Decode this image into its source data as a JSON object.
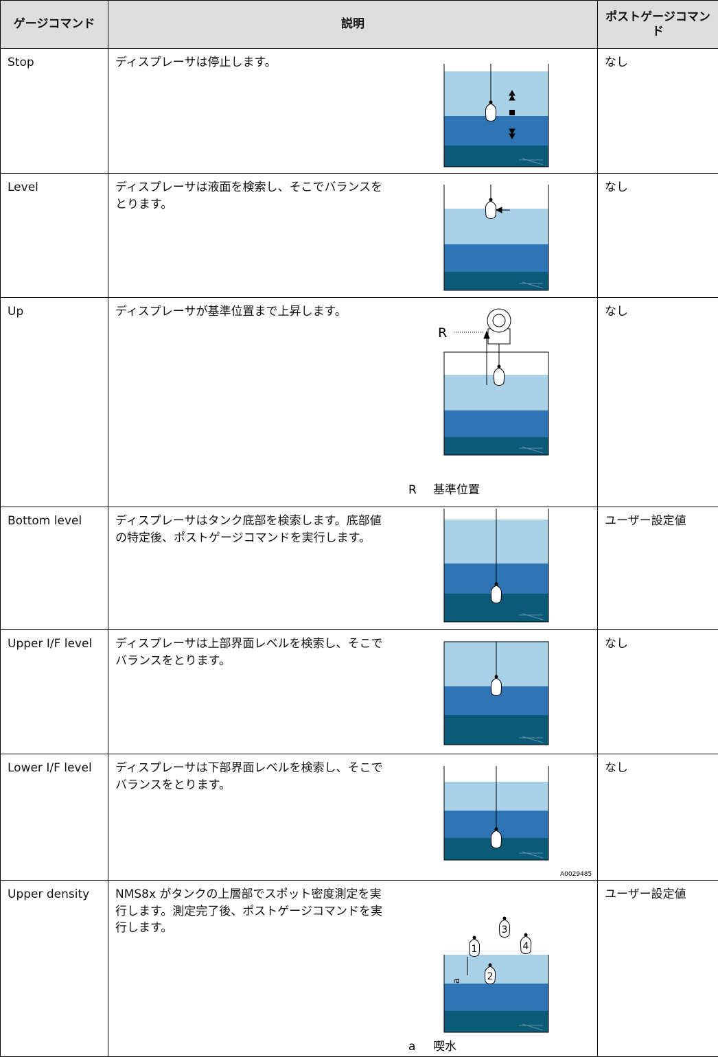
{
  "header": {
    "command": "ゲージコマンド",
    "description": "説明",
    "post": "ポストゲージコマンド"
  },
  "rows": [
    {
      "command": "Stop",
      "description": "ディスプレーサは停止します。",
      "post": "なし"
    },
    {
      "command": "Level",
      "description": "ディスプレーサは液面を検索し、そこでバランスをとります。",
      "post": "なし"
    },
    {
      "command": "Up",
      "description": "ディスプレーサが基準位置まで上昇します。",
      "post": "なし"
    },
    {
      "command": "Bottom level",
      "description": "ディスプレーサはタンク底部を検索します。底部値の特定後、ポストゲージコマンドを実行します。",
      "post": "ユーザー設定値"
    },
    {
      "command": "Upper I/F level",
      "description": "ディスプレーサは上部界面レベルを検索し、そこでバランスをとります。",
      "post": "なし"
    },
    {
      "command": "Lower I/F level",
      "description": "ディスプレーサは下部界面レベルを検索し、そこでバランスをとります。",
      "post": "なし"
    },
    {
      "command": "Upper density",
      "description": "NMS8x がタンクの上層部でスポット密度測定を実行します。測定完了後、ポストゲージコマンドを実行します。",
      "post": "ユーザー設定値"
    }
  ],
  "figures": {
    "up": {
      "label": "R",
      "caption_key": "R",
      "caption_text": "基準位置"
    },
    "code": "A0029485",
    "density": {
      "points": [
        "1",
        "2",
        "3",
        "4"
      ],
      "label": "a",
      "caption_key": "a",
      "caption_text": "喫水"
    }
  }
}
